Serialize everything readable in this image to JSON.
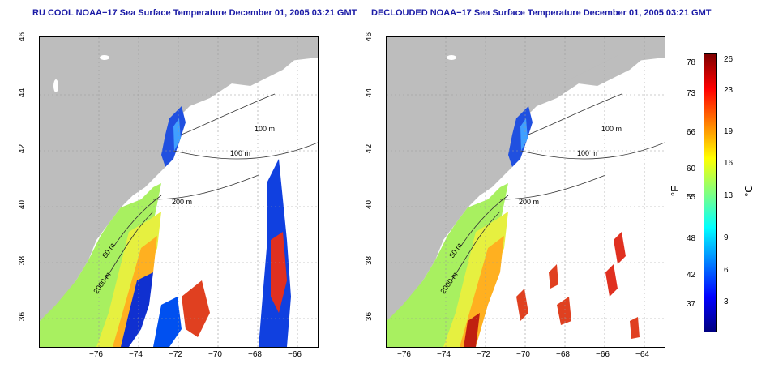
{
  "left": {
    "title": "RU COOL NOAA−17 Sea Surface Temperature December 01, 2005 03:21 GMT"
  },
  "right": {
    "title": "DECLOUDED NOAA−17 Sea Surface Temperature December 01, 2005 03:21 GMT"
  },
  "axes": {
    "x_ticks": [
      "−76",
      "−74",
      "−72",
      "−70",
      "−68",
      "−66",
      "−64"
    ],
    "y_ticks": [
      "46",
      "44",
      "42",
      "40",
      "38",
      "36"
    ],
    "x_range": [
      -77,
      -63
    ],
    "y_range": [
      35,
      46
    ]
  },
  "contours": {
    "labels": [
      "100 m",
      "100 m",
      "50 m",
      "200 m",
      "50 m",
      "2000 m"
    ]
  },
  "colorbar": {
    "fahrenheit": [
      "78",
      "73",
      "66",
      "60",
      "55",
      "48",
      "42",
      "37"
    ],
    "celsius": [
      "26",
      "23",
      "19",
      "16",
      "13",
      "9",
      "6",
      "3"
    ],
    "unit_f": "°F",
    "unit_c": "°C",
    "colors": [
      "#000080",
      "#0000ff",
      "#0080ff",
      "#00ffff",
      "#80ff80",
      "#ffff00",
      "#ff8000",
      "#ff0000",
      "#800000"
    ]
  }
}
